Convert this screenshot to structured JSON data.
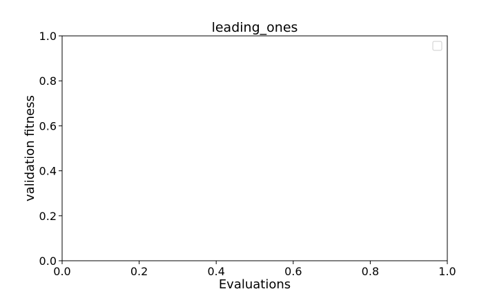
{
  "chart_data": {
    "type": "line",
    "title": "leading_ones",
    "xlabel": "Evaluations",
    "ylabel": "validation fitness",
    "xlim": [
      0.0,
      1.0
    ],
    "ylim": [
      0.0,
      1.0
    ],
    "xticks": [
      "0.0",
      "0.2",
      "0.4",
      "0.6",
      "0.8",
      "1.0"
    ],
    "yticks": [
      "0.0",
      "0.2",
      "0.4",
      "0.6",
      "0.8",
      "1.0"
    ],
    "series": [],
    "grid": false,
    "legend": {
      "placement": "top-right",
      "entries": []
    },
    "colors": {
      "axes": "#000000",
      "background": "#ffffff",
      "legend_border": "#cccccc"
    }
  }
}
